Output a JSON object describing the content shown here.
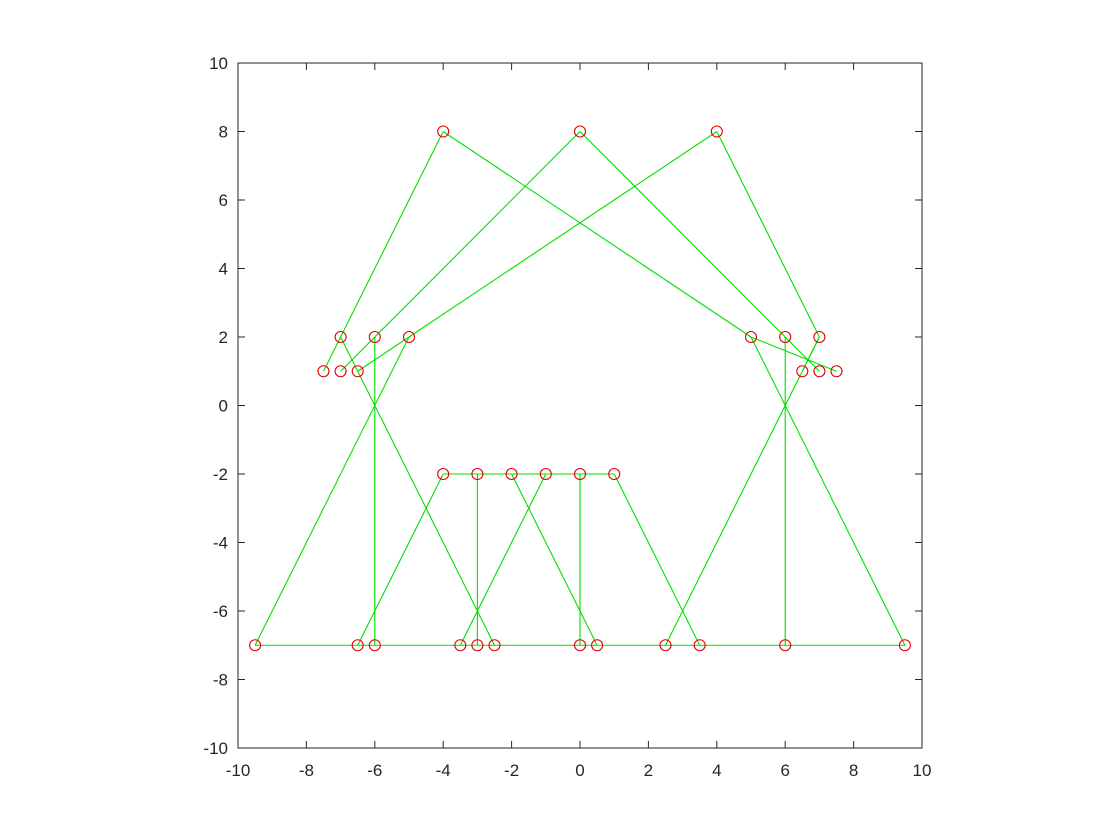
{
  "chart_data": {
    "type": "line",
    "title": "",
    "xlabel": "",
    "ylabel": "",
    "xlim": [
      -10,
      10
    ],
    "ylim": [
      -10,
      10
    ],
    "xticks": [
      -10,
      -8,
      -6,
      -4,
      -2,
      0,
      2,
      4,
      6,
      8,
      10
    ],
    "yticks": [
      -10,
      -8,
      -6,
      -4,
      -2,
      0,
      2,
      4,
      6,
      8,
      10
    ],
    "xtick_labels": [
      "-10",
      "-8",
      "-6",
      "-4",
      "-2",
      "0",
      "2",
      "4",
      "6",
      "8",
      "10"
    ],
    "ytick_labels": [
      "-10",
      "-8",
      "-6",
      "-4",
      "-2",
      "0",
      "2",
      "4",
      "6",
      "8",
      "10"
    ],
    "grid": false,
    "line_color": "#00e000",
    "marker_color": "#e00000",
    "marker": "circle",
    "points": [
      [
        -4,
        8
      ],
      [
        0,
        8
      ],
      [
        4,
        8
      ],
      [
        -7,
        2
      ],
      [
        -6,
        2
      ],
      [
        -5,
        2
      ],
      [
        5,
        2
      ],
      [
        6,
        2
      ],
      [
        7,
        2
      ],
      [
        -7.5,
        1
      ],
      [
        -7,
        1
      ],
      [
        -6.5,
        1
      ],
      [
        6.5,
        1
      ],
      [
        7,
        1
      ],
      [
        7.5,
        1
      ],
      [
        -4,
        -2
      ],
      [
        -3,
        -2
      ],
      [
        -2,
        -2
      ],
      [
        -1,
        -2
      ],
      [
        0,
        -2
      ],
      [
        1,
        -2
      ],
      [
        -9.5,
        -7
      ],
      [
        -6.5,
        -7
      ],
      [
        -6,
        -7
      ],
      [
        -3.5,
        -7
      ],
      [
        -3,
        -7
      ],
      [
        -2.5,
        -7
      ],
      [
        0,
        -7
      ],
      [
        0.5,
        -7
      ],
      [
        2.5,
        -7
      ],
      [
        3.5,
        -7
      ],
      [
        6,
        -7
      ],
      [
        9.5,
        -7
      ]
    ],
    "segments": [
      [
        [
          -9.5,
          -7
        ],
        [
          9.5,
          -7
        ]
      ],
      [
        [
          -4,
          -2
        ],
        [
          1,
          -2
        ]
      ],
      [
        [
          -4,
          8
        ],
        [
          -7,
          2
        ]
      ],
      [
        [
          -7,
          2
        ],
        [
          -7.5,
          1
        ]
      ],
      [
        [
          -7,
          2
        ],
        [
          -2.5,
          -7
        ]
      ],
      [
        [
          -4,
          8
        ],
        [
          5,
          2
        ]
      ],
      [
        [
          5,
          2
        ],
        [
          7.5,
          1
        ]
      ],
      [
        [
          5,
          2
        ],
        [
          9.5,
          -7
        ]
      ],
      [
        [
          0,
          8
        ],
        [
          -7,
          1
        ]
      ],
      [
        [
          0,
          8
        ],
        [
          7,
          1
        ]
      ],
      [
        [
          4,
          8
        ],
        [
          -6.5,
          1
        ]
      ],
      [
        [
          4,
          8
        ],
        [
          7,
          2
        ]
      ],
      [
        [
          7,
          2
        ],
        [
          6.5,
          1
        ]
      ],
      [
        [
          7,
          2
        ],
        [
          2.5,
          -7
        ]
      ],
      [
        [
          -6,
          2
        ],
        [
          -6,
          -7
        ]
      ],
      [
        [
          6,
          2
        ],
        [
          6,
          -7
        ]
      ],
      [
        [
          -5,
          2
        ],
        [
          -9.5,
          -7
        ]
      ],
      [
        [
          -4,
          -2
        ],
        [
          -6.5,
          -7
        ]
      ],
      [
        [
          -3,
          -2
        ],
        [
          -3,
          -7
        ]
      ],
      [
        [
          -2,
          -2
        ],
        [
          0.5,
          -7
        ]
      ],
      [
        [
          -1,
          -2
        ],
        [
          -3.5,
          -7
        ]
      ],
      [
        [
          0,
          -2
        ],
        [
          0,
          -7
        ]
      ],
      [
        [
          1,
          -2
        ],
        [
          3.5,
          -7
        ]
      ]
    ]
  }
}
